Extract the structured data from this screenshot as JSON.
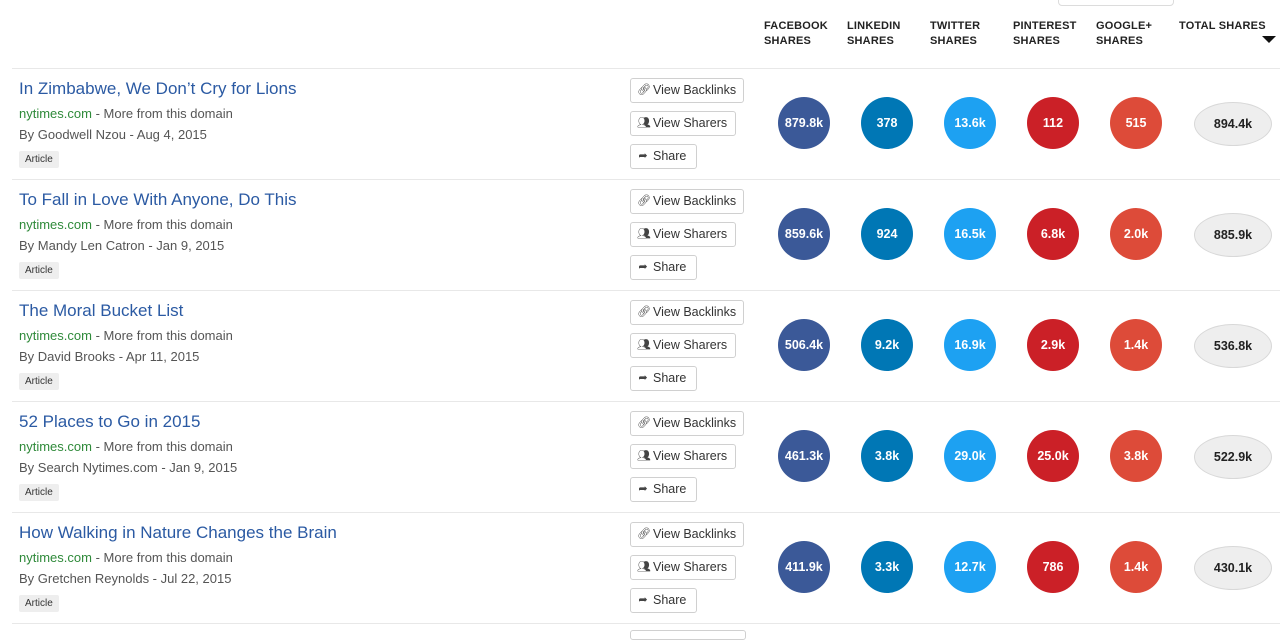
{
  "columns": [
    {
      "label": "FACEBOOK SHARES",
      "line1": "FACEBOOK",
      "line2": "SHARES"
    },
    {
      "label": "LINKEDIN SHARES",
      "line1": "LINKEDIN",
      "line2": "SHARES"
    },
    {
      "label": "TWITTER SHARES",
      "line1": "TWITTER",
      "line2": "SHARES"
    },
    {
      "label": "PINTEREST SHARES",
      "line1": "PINTEREST",
      "line2": "SHARES"
    },
    {
      "label": "GOOGLE+ SHARES",
      "line1": "GOOGLE+",
      "line2": "SHARES"
    },
    {
      "label": "TOTAL SHARES",
      "line1": "TOTAL SHARES",
      "line2": ""
    }
  ],
  "buttons": {
    "backlinks": "View Backlinks",
    "sharers": "View Sharers",
    "share": "Share"
  },
  "colors": {
    "facebook": "#3b5998",
    "linkedin": "#0077b5",
    "twitter": "#1da1f2",
    "pinterest": "#cb2027",
    "googleplus": "#dd4b39"
  },
  "icons": {
    "backlinks": "link-icon",
    "sharers": "users-icon",
    "share": "share-icon",
    "sort": "sort-down-icon"
  },
  "articles": [
    {
      "title": "In Zimbabwe, We Don’t Cry for Lions",
      "domain": "nytimes.com",
      "separator": " - ",
      "more": "More from this domain",
      "byline": "By Goodwell Nzou - Aug 4, 2015",
      "type": "Article",
      "facebook": "879.8k",
      "linkedin": "378",
      "twitter": "13.6k",
      "pinterest": "112",
      "googleplus": "515",
      "total": "894.4k"
    },
    {
      "title": "To Fall in Love With Anyone, Do This",
      "domain": "nytimes.com",
      "separator": " - ",
      "more": "More from this domain",
      "byline": "By Mandy Len Catron - Jan 9, 2015",
      "type": "Article",
      "facebook": "859.6k",
      "linkedin": "924",
      "twitter": "16.5k",
      "pinterest": "6.8k",
      "googleplus": "2.0k",
      "total": "885.9k"
    },
    {
      "title": "The Moral Bucket List",
      "domain": "nytimes.com",
      "separator": " - ",
      "more": "More from this domain",
      "byline": "By David Brooks - Apr 11, 2015",
      "type": "Article",
      "facebook": "506.4k",
      "linkedin": "9.2k",
      "twitter": "16.9k",
      "pinterest": "2.9k",
      "googleplus": "1.4k",
      "total": "536.8k"
    },
    {
      "title": "52 Places to Go in 2015",
      "domain": "nytimes.com",
      "separator": " - ",
      "more": "More from this domain",
      "byline": "By Search Nytimes.com - Jan 9, 2015",
      "type": "Article",
      "facebook": "461.3k",
      "linkedin": "3.8k",
      "twitter": "29.0k",
      "pinterest": "25.0k",
      "googleplus": "3.8k",
      "total": "522.9k"
    },
    {
      "title": "How Walking in Nature Changes the Brain",
      "domain": "nytimes.com",
      "separator": " - ",
      "more": "More from this domain",
      "byline": "By Gretchen Reynolds - Jul 22, 2015",
      "type": "Article",
      "facebook": "411.9k",
      "linkedin": "3.3k",
      "twitter": "12.7k",
      "pinterest": "786",
      "googleplus": "1.4k",
      "total": "430.1k"
    }
  ]
}
